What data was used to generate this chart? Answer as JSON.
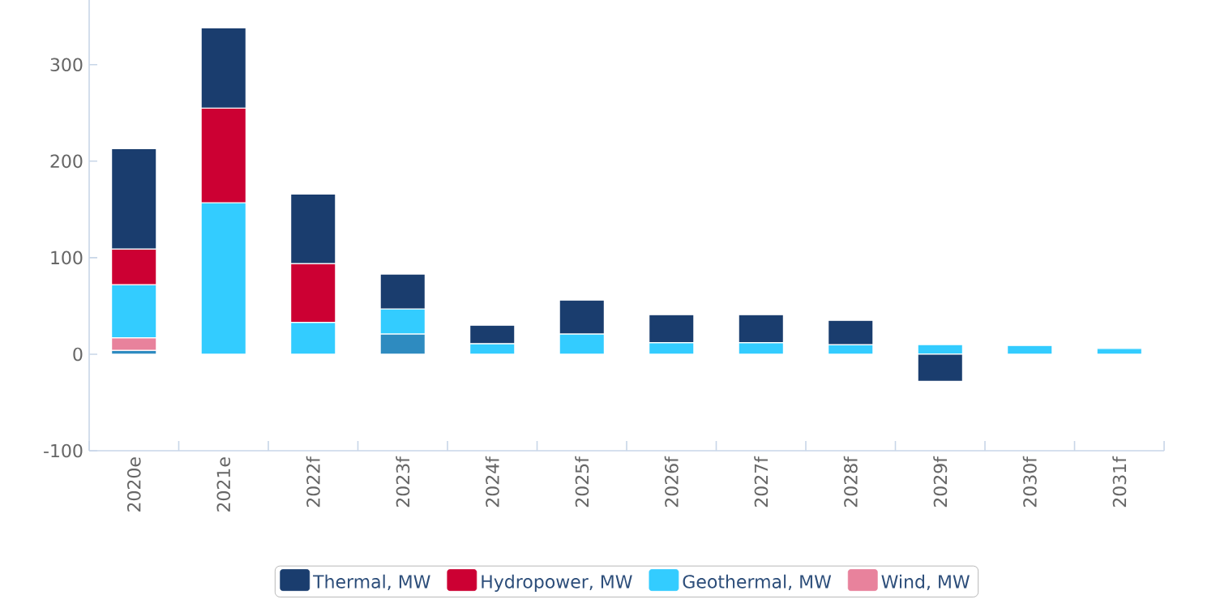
{
  "chart_data": {
    "type": "bar",
    "stacked": true,
    "categories": [
      "2020e",
      "2021e",
      "2022f",
      "2023f",
      "2024f",
      "2025f",
      "2026f",
      "2027f",
      "2028f",
      "2029f",
      "2030f",
      "2031f"
    ],
    "series": [
      {
        "color": "#2e8bc0",
        "values": [
          4,
          0,
          0,
          21,
          0,
          0,
          0,
          0,
          0,
          0,
          0,
          0
        ]
      },
      {
        "name": "Wind, MW",
        "color": "#e8829c",
        "values": [
          13,
          0,
          0,
          0,
          0,
          0,
          0,
          0,
          0,
          0,
          0,
          0
        ]
      },
      {
        "name": "Geothermal, MW",
        "color": "#33ccff",
        "values": [
          55,
          157,
          33,
          26,
          11,
          21,
          12,
          12,
          10,
          10,
          9,
          6
        ]
      },
      {
        "name": "Hydropower, MW",
        "color": "#cc0033",
        "values": [
          37,
          98,
          61,
          0,
          0,
          0,
          0,
          0,
          0,
          0,
          0,
          0
        ]
      },
      {
        "name": "Thermal, MW",
        "color": "#1a3d6e",
        "values": [
          104,
          83,
          72,
          36,
          19,
          35,
          29,
          29,
          25,
          -28,
          0,
          0
        ]
      }
    ],
    "ylim": [
      -100,
      367
    ],
    "yticks": [
      -100,
      0,
      100,
      200,
      300
    ],
    "legend": "bottom"
  }
}
